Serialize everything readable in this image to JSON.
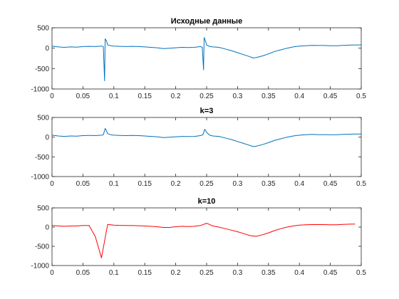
{
  "figure": {
    "background": "#ffffff"
  },
  "chart_data": [
    {
      "type": "line",
      "title": "Исходные данные",
      "xlim": [
        0,
        0.5
      ],
      "ylim": [
        -1000,
        500
      ],
      "x_ticks": [
        0,
        0.05,
        0.1,
        0.15,
        0.2,
        0.25,
        0.3,
        0.35,
        0.4,
        0.45,
        0.5
      ],
      "x_tick_labels": [
        "0",
        "0.05",
        "0.1",
        "0.15",
        "0.2",
        "0.25",
        "0.3",
        "0.35",
        "0.4",
        "0.45",
        "0.5"
      ],
      "y_ticks": [
        -1000,
        -500,
        0,
        500
      ],
      "y_tick_labels": [
        "-1000",
        "-500",
        "0",
        "500"
      ],
      "grid": false,
      "series": [
        {
          "color": "#0072BD",
          "x": [
            0,
            0.01,
            0.02,
            0.03,
            0.04,
            0.05,
            0.06,
            0.07,
            0.08,
            0.083,
            0.085,
            0.086,
            0.088,
            0.09,
            0.095,
            0.1,
            0.11,
            0.12,
            0.13,
            0.14,
            0.15,
            0.16,
            0.17,
            0.18,
            0.19,
            0.2,
            0.21,
            0.22,
            0.23,
            0.24,
            0.243,
            0.245,
            0.246,
            0.248,
            0.25,
            0.255,
            0.26,
            0.27,
            0.28,
            0.29,
            0.3,
            0.31,
            0.32,
            0.325,
            0.33,
            0.34,
            0.35,
            0.36,
            0.37,
            0.38,
            0.39,
            0.4,
            0.41,
            0.42,
            0.43,
            0.44,
            0.45,
            0.46,
            0.47,
            0.48,
            0.49,
            0.5
          ],
          "y": [
            50,
            30,
            20,
            30,
            25,
            40,
            45,
            40,
            50,
            40,
            -800,
            230,
            180,
            80,
            60,
            50,
            45,
            40,
            45,
            40,
            30,
            20,
            10,
            -10,
            0,
            10,
            20,
            15,
            20,
            40,
            20,
            -530,
            260,
            180,
            80,
            40,
            30,
            20,
            -20,
            -60,
            -110,
            -160,
            -210,
            -240,
            -230,
            -190,
            -140,
            -80,
            -40,
            0,
            30,
            50,
            60,
            70,
            65,
            65,
            60,
            60,
            70,
            75,
            80,
            80
          ]
        }
      ]
    },
    {
      "type": "line",
      "title": "k=3",
      "xlim": [
        0,
        0.5
      ],
      "ylim": [
        -1000,
        500
      ],
      "x_ticks": [
        0,
        0.05,
        0.1,
        0.15,
        0.2,
        0.25,
        0.3,
        0.35,
        0.4,
        0.45,
        0.5
      ],
      "x_tick_labels": [
        "0",
        "0.05",
        "0.1",
        "0.15",
        "0.2",
        "0.25",
        "0.3",
        "0.35",
        "0.4",
        "0.45",
        "0.5"
      ],
      "y_ticks": [
        -1000,
        -500,
        0,
        500
      ],
      "y_tick_labels": [
        "-1000",
        "-500",
        "0",
        "500"
      ],
      "grid": false,
      "series": [
        {
          "color": "#0072BD",
          "x": [
            0,
            0.01,
            0.02,
            0.03,
            0.04,
            0.05,
            0.06,
            0.07,
            0.08,
            0.083,
            0.086,
            0.088,
            0.09,
            0.095,
            0.1,
            0.11,
            0.12,
            0.13,
            0.14,
            0.15,
            0.16,
            0.17,
            0.18,
            0.19,
            0.2,
            0.21,
            0.22,
            0.23,
            0.24,
            0.244,
            0.247,
            0.25,
            0.255,
            0.26,
            0.27,
            0.28,
            0.29,
            0.3,
            0.31,
            0.32,
            0.325,
            0.33,
            0.34,
            0.35,
            0.36,
            0.37,
            0.38,
            0.39,
            0.4,
            0.41,
            0.42,
            0.43,
            0.44,
            0.45,
            0.46,
            0.47,
            0.48,
            0.49,
            0.5
          ],
          "y": [
            50,
            30,
            20,
            30,
            25,
            40,
            45,
            40,
            50,
            60,
            220,
            160,
            90,
            60,
            50,
            45,
            40,
            45,
            40,
            30,
            20,
            10,
            -10,
            0,
            10,
            20,
            15,
            20,
            40,
            60,
            200,
            120,
            50,
            30,
            20,
            -20,
            -60,
            -110,
            -160,
            -210,
            -240,
            -230,
            -190,
            -140,
            -80,
            -40,
            0,
            30,
            50,
            60,
            70,
            65,
            65,
            60,
            60,
            70,
            75,
            80,
            80
          ]
        }
      ]
    },
    {
      "type": "line",
      "title": "k=10",
      "xlim": [
        0,
        0.5
      ],
      "ylim": [
        -1000,
        500
      ],
      "x_ticks": [
        0,
        0.05,
        0.1,
        0.15,
        0.2,
        0.25,
        0.3,
        0.35,
        0.4,
        0.45,
        0.5
      ],
      "x_tick_labels": [
        "0",
        "0.05",
        "0.1",
        "0.15",
        "0.2",
        "0.25",
        "0.3",
        "0.35",
        "0.4",
        "0.45",
        "0.5"
      ],
      "y_ticks": [
        -1000,
        -500,
        0,
        500
      ],
      "y_tick_labels": [
        "-1000",
        "-500",
        "0",
        "500"
      ],
      "grid": false,
      "series": [
        {
          "color": "#FF0000",
          "x": [
            0,
            0.01,
            0.02,
            0.03,
            0.04,
            0.05,
            0.06,
            0.07,
            0.08,
            0.09,
            0.1,
            0.11,
            0.12,
            0.13,
            0.14,
            0.15,
            0.16,
            0.17,
            0.18,
            0.19,
            0.2,
            0.21,
            0.22,
            0.23,
            0.24,
            0.25,
            0.26,
            0.27,
            0.28,
            0.29,
            0.3,
            0.31,
            0.32,
            0.33,
            0.34,
            0.35,
            0.36,
            0.37,
            0.38,
            0.39,
            0.4,
            0.41,
            0.42,
            0.43,
            0.44,
            0.45,
            0.46,
            0.47,
            0.48,
            0.49
          ],
          "y": [
            40,
            30,
            20,
            30,
            30,
            40,
            40,
            -250,
            -800,
            70,
            50,
            45,
            40,
            40,
            35,
            30,
            20,
            10,
            -10,
            -10,
            10,
            20,
            15,
            20,
            40,
            100,
            30,
            0,
            -40,
            -80,
            -120,
            -170,
            -220,
            -240,
            -200,
            -150,
            -90,
            -40,
            0,
            30,
            50,
            60,
            65,
            65,
            65,
            60,
            60,
            70,
            75,
            80
          ]
        }
      ]
    }
  ]
}
